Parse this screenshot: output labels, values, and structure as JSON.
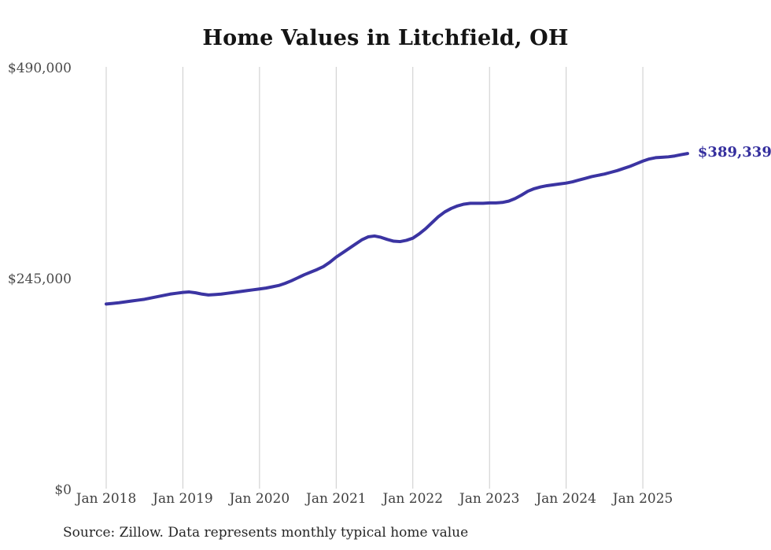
{
  "page": {
    "title": "Home Values in Litchfield, OH",
    "source_note": "Source: Zillow. Data represents monthly typical home value",
    "end_label": "$389,339"
  },
  "colors": {
    "line": "#3b34a2",
    "end_label_text": "#352f9e",
    "grid": "#cbcbcb",
    "axis_text": "#4a4a4a",
    "title_text": "#141414",
    "source_text": "#262626",
    "background": "#ffffff"
  },
  "chart_data": {
    "type": "line",
    "title": "Home Values in Litchfield, OH",
    "xlabel": "",
    "ylabel": "",
    "x_unit": "month",
    "x_start": "2018-01",
    "x_end": "2025-08",
    "x_tick_labels": [
      "Jan 2018",
      "Jan 2019",
      "Jan 2020",
      "Jan 2021",
      "Jan 2022",
      "Jan 2023",
      "Jan 2024",
      "Jan 2025"
    ],
    "y_ticks": [
      0,
      245000,
      490000
    ],
    "y_tick_labels": [
      "$0",
      "$245,000",
      "$490,000"
    ],
    "ylim": [
      0,
      490000
    ],
    "grid": "vertical-yearly-gridlines",
    "legend": "none",
    "end_value": 389339,
    "end_value_label": "$389,339",
    "series": [
      {
        "name": "Monthly typical home value",
        "values": [
          214500,
          215200,
          216000,
          217000,
          218000,
          219000,
          220000,
          221500,
          223000,
          224500,
          226000,
          227000,
          228000,
          228500,
          227500,
          226000,
          225000,
          225500,
          226000,
          227000,
          228000,
          229000,
          230000,
          231000,
          232000,
          233000,
          234500,
          236000,
          238500,
          241500,
          245000,
          248500,
          251500,
          254500,
          258000,
          263000,
          269000,
          274000,
          279000,
          284000,
          289000,
          292500,
          293500,
          292000,
          289500,
          287500,
          287000,
          288500,
          291000,
          296000,
          302000,
          309000,
          316000,
          321500,
          325500,
          328500,
          330500,
          331500,
          331500,
          331500,
          332000,
          332000,
          332500,
          334000,
          337000,
          341000,
          345500,
          348500,
          350500,
          352000,
          353000,
          354000,
          355000,
          356500,
          358500,
          360500,
          362500,
          364000,
          365500,
          367500,
          369500,
          372000,
          374500,
          377500,
          380500,
          383000,
          384500,
          385000,
          385500,
          386500,
          388000,
          389339
        ]
      }
    ]
  }
}
